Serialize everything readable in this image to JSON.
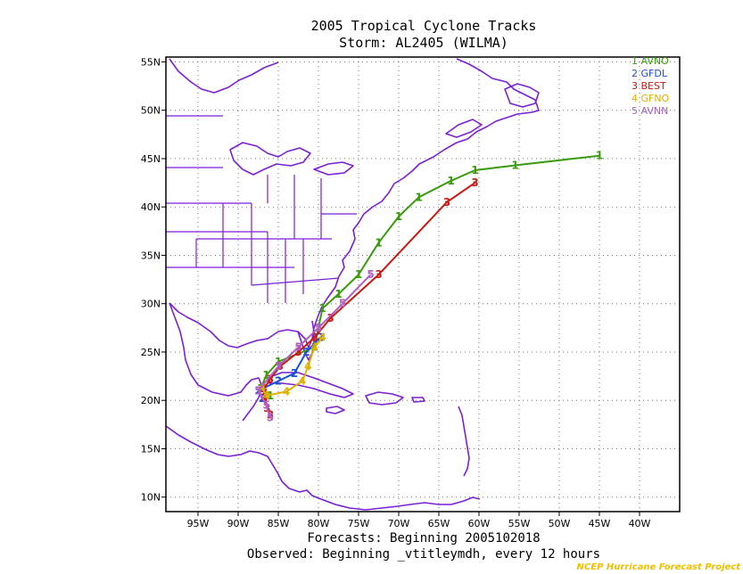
{
  "chart_data": {
    "type": "line",
    "title": "2005 Tropical Cyclone Tracks",
    "subtitle": "Storm: AL2405 (WILMA)",
    "footer_lines": [
      "Forecasts: Beginning 2005102018",
      "Observed: Beginning _vtitleymdh, every 12 hours"
    ],
    "credit": "NCEP Hurricane Forecast Project",
    "xlim": [
      -99,
      -35
    ],
    "ylim": [
      8.5,
      55.5
    ],
    "x_ticks": [
      -95,
      -90,
      -85,
      -80,
      -75,
      -70,
      -65,
      -60,
      -55,
      -50,
      -45,
      -40
    ],
    "y_ticks": [
      10,
      15,
      20,
      25,
      30,
      35,
      40,
      45,
      50,
      55
    ],
    "x_tick_labels": [
      "95W",
      "90W",
      "85W",
      "80W",
      "75W",
      "70W",
      "65W",
      "60W",
      "55W",
      "50W",
      "45W",
      "40W"
    ],
    "y_tick_labels": [
      "10N",
      "15N",
      "20N",
      "25N",
      "30N",
      "35N",
      "40N",
      "45N",
      "50N",
      "55N"
    ],
    "grid": true,
    "legend_position": "top-right",
    "series": [
      {
        "name": "AVNO",
        "marker": "1",
        "color": "#3a9a10",
        "points": [
          [
            -86.0,
            20.5
          ],
          [
            -87.2,
            21.2
          ],
          [
            -86.5,
            22.6
          ],
          [
            -85.0,
            24.0
          ],
          [
            -80.5,
            25.5
          ],
          [
            -79.5,
            29.5
          ],
          [
            -77.5,
            31.0
          ],
          [
            -75.0,
            33.0
          ],
          [
            -72.5,
            36.3
          ],
          [
            -70.0,
            39.0
          ],
          [
            -67.5,
            41.0
          ],
          [
            -63.5,
            42.7
          ],
          [
            -60.5,
            43.8
          ],
          [
            -55.5,
            44.3
          ],
          [
            -45.0,
            45.3
          ]
        ]
      },
      {
        "name": "GFDL",
        "marker": "2",
        "color": "#1a50d8",
        "points": [
          [
            -87.0,
            20.2
          ],
          [
            -87.5,
            21.0
          ],
          [
            -85.0,
            22.0
          ],
          [
            -83.0,
            22.8
          ],
          [
            -81.5,
            25.0
          ],
          [
            -79.8,
            26.5
          ]
        ]
      },
      {
        "name": "BEST",
        "marker": "3",
        "color": "#c81a10",
        "points": [
          [
            -86.0,
            18.5
          ],
          [
            -86.4,
            19.2
          ],
          [
            -86.7,
            20.3
          ],
          [
            -86.8,
            21.2
          ],
          [
            -86.0,
            22.2
          ],
          [
            -84.8,
            23.5
          ],
          [
            -82.5,
            25.0
          ],
          [
            -80.5,
            26.5
          ],
          [
            -78.5,
            28.5
          ],
          [
            -72.5,
            33.0
          ],
          [
            -64.0,
            40.5
          ],
          [
            -60.5,
            42.5
          ]
        ]
      },
      {
        "name": "GFNO",
        "marker": "4",
        "color": "#e0b000",
        "points": [
          [
            -87.0,
            21.3
          ],
          [
            -86.5,
            20.5
          ],
          [
            -84.0,
            20.9
          ],
          [
            -82.0,
            22.0
          ],
          [
            -81.3,
            23.5
          ],
          [
            -80.5,
            25.5
          ],
          [
            -79.5,
            26.5
          ]
        ]
      },
      {
        "name": "AVNN",
        "marker": "5",
        "color": "#b060c0",
        "points": [
          [
            -86.0,
            18.2
          ],
          [
            -86.5,
            19.5
          ],
          [
            -87.5,
            21.0
          ],
          [
            -85.0,
            23.5
          ],
          [
            -82.5,
            25.5
          ],
          [
            -80.0,
            27.5
          ],
          [
            -77.0,
            30.0
          ],
          [
            -73.5,
            33.0
          ]
        ]
      }
    ]
  },
  "colors": {
    "coastline": "#7a1fd6",
    "credit": "#f0c000"
  }
}
